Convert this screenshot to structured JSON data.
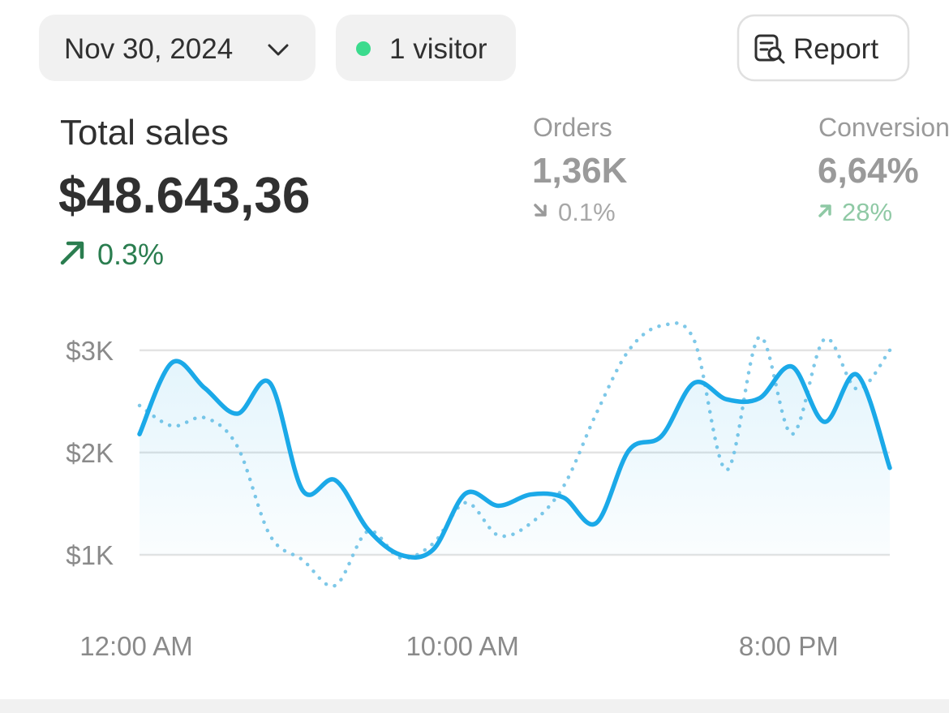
{
  "header": {
    "date": "Nov 30, 2024",
    "visitors": "1 visitor",
    "report": "Report"
  },
  "metrics": [
    {
      "label": "Total sales",
      "value": "$48.643,36",
      "change": "0.3%"
    },
    {
      "label": "Orders",
      "value": "1,36K",
      "change": "0.1%"
    },
    {
      "label": "Conversion",
      "value": "6,64%",
      "change": "28%"
    }
  ],
  "chart_data": {
    "type": "line",
    "categories": [
      "12:00 AM",
      null,
      null,
      null,
      null,
      null,
      null,
      null,
      null,
      null,
      "10:00 AM",
      null,
      null,
      null,
      null,
      null,
      null,
      null,
      null,
      null,
      "8:00 PM",
      null,
      null,
      null
    ],
    "series": [
      {
        "color": "#1ba9e8",
        "style": "solid",
        "values": [
          2180,
          2880,
          2630,
          2380,
          2680,
          1630,
          1730,
          1250,
          1000,
          1050,
          1600,
          1480,
          1590,
          1560,
          1310,
          2020,
          2160,
          2680,
          2520,
          2530,
          2840,
          2300,
          2760,
          1850
        ]
      },
      {
        "color": "#7ec8e8",
        "style": "dotted",
        "values": [
          2460,
          2260,
          2340,
          2060,
          1190,
          950,
          700,
          1230,
          970,
          1110,
          1510,
          1190,
          1310,
          1670,
          2380,
          3000,
          3240,
          3100,
          1830,
          3130,
          2180,
          3110,
          2620,
          3000
        ]
      }
    ],
    "ylim": [
      500,
      3300
    ],
    "yticks": [
      {
        "value": 1000,
        "label": "$1K"
      },
      {
        "value": 2000,
        "label": "$2K"
      },
      {
        "value": 3000,
        "label": "$3K"
      }
    ],
    "grid": true
  }
}
